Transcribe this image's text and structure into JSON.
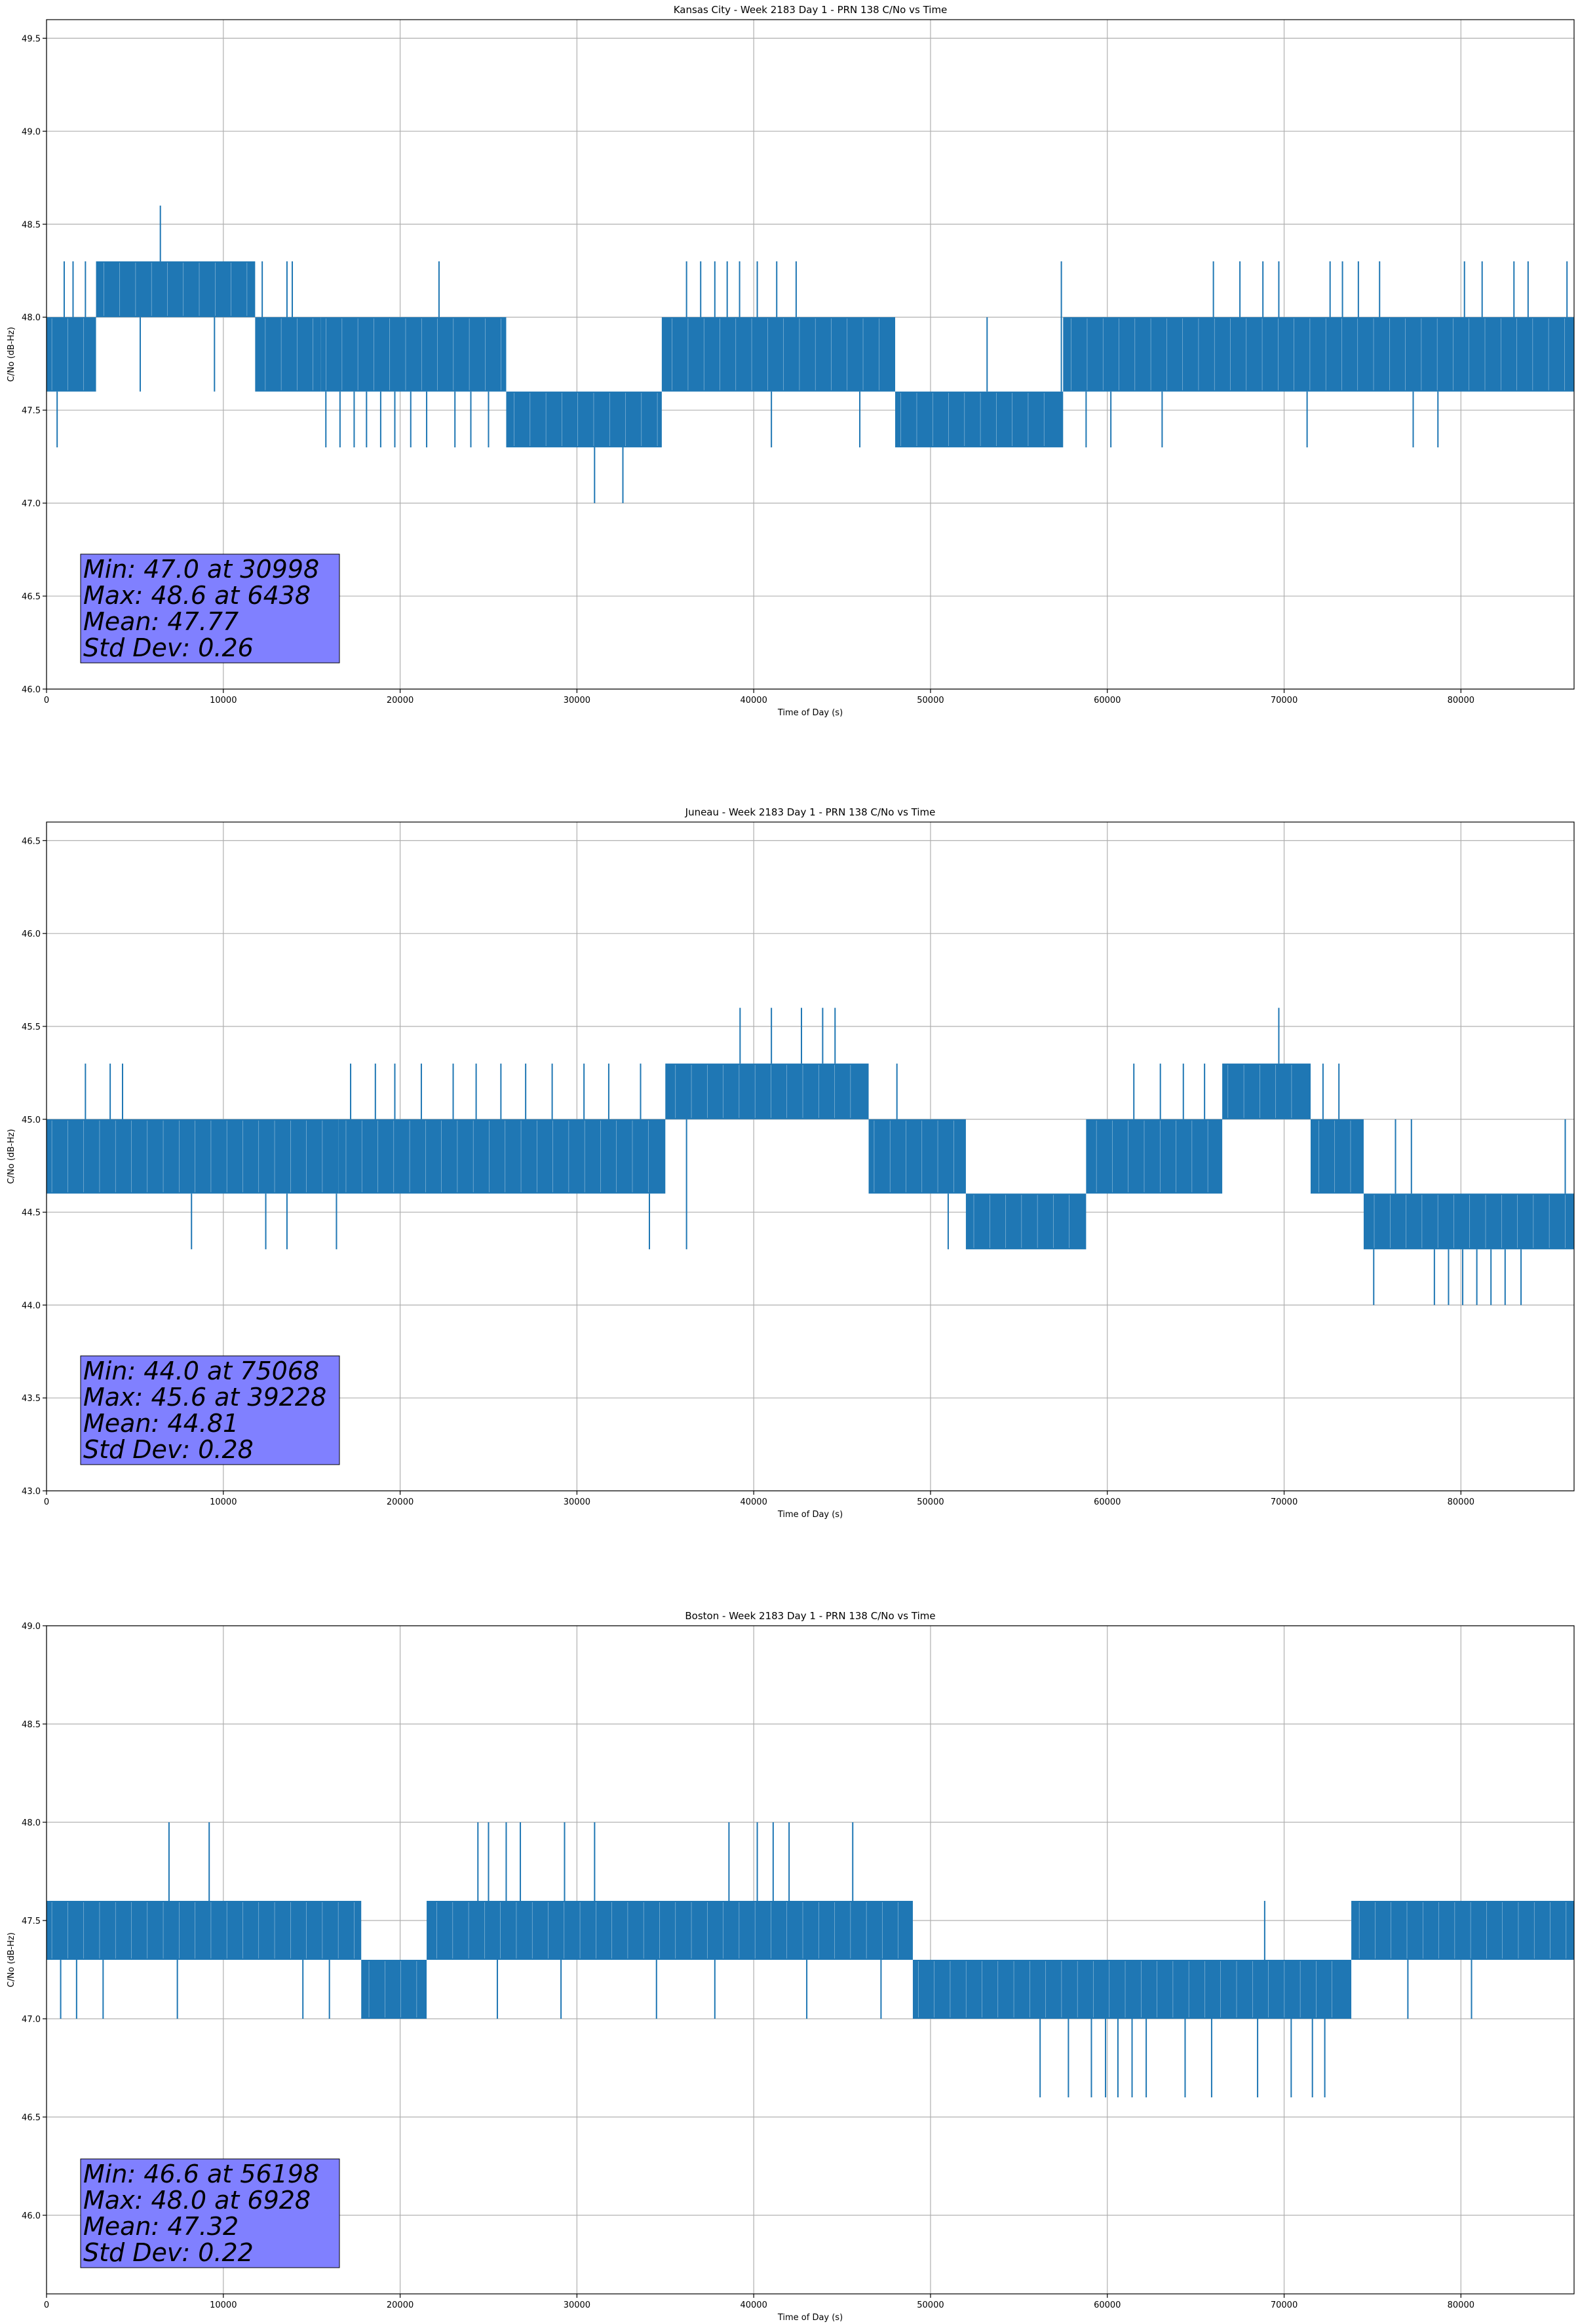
{
  "chart_data": [
    {
      "type": "line",
      "title": "Kansas City - Week 2183 Day 1 - PRN 138 C/No vs Time",
      "xlabel": "Time of Day (s)",
      "ylabel": "C/No (dB-Hz)",
      "xlim": [
        0,
        86400
      ],
      "ylim": [
        46.0,
        49.6
      ],
      "xticks": [
        0,
        10000,
        20000,
        30000,
        40000,
        50000,
        60000,
        70000,
        80000
      ],
      "xtick_labels": [
        "0",
        "10000",
        "20000",
        "30000",
        "40000",
        "50000",
        "60000",
        "70000",
        "80000"
      ],
      "yticks": [
        46.0,
        46.5,
        47.0,
        47.5,
        48.0,
        48.5,
        49.0,
        49.5
      ],
      "ytick_labels": [
        "46.0",
        "46.5",
        "47.0",
        "47.5",
        "48.0",
        "48.5",
        "49.0",
        "49.5"
      ],
      "grid": true,
      "series_color": "#1f77b4",
      "band_segments": [
        {
          "x0": 0,
          "x1": 2800,
          "lo": 47.6,
          "hi": 48.0
        },
        {
          "x0": 2800,
          "x1": 11800,
          "lo": 48.0,
          "hi": 48.3
        },
        {
          "x0": 11800,
          "x1": 15500,
          "lo": 47.6,
          "hi": 48.0
        },
        {
          "x0": 15500,
          "x1": 26000,
          "lo": 47.6,
          "hi": 48.0
        },
        {
          "x0": 26000,
          "x1": 34800,
          "lo": 47.3,
          "hi": 47.6
        },
        {
          "x0": 34800,
          "x1": 48000,
          "lo": 47.6,
          "hi": 48.0
        },
        {
          "x0": 48000,
          "x1": 57500,
          "lo": 47.3,
          "hi": 47.6
        },
        {
          "x0": 57500,
          "x1": 86400,
          "lo": 47.6,
          "hi": 48.0
        }
      ],
      "spikes": [
        {
          "x": 600,
          "lo": 47.3
        },
        {
          "x": 1000,
          "hi": 48.3
        },
        {
          "x": 1500,
          "hi": 48.3
        },
        {
          "x": 2200,
          "hi": 48.3
        },
        {
          "x": 5300,
          "lo": 47.6
        },
        {
          "x": 6438,
          "hi": 48.6
        },
        {
          "x": 9500,
          "lo": 47.6
        },
        {
          "x": 12200,
          "hi": 48.3
        },
        {
          "x": 13600,
          "hi": 48.3
        },
        {
          "x": 13900,
          "hi": 48.3
        },
        {
          "x": 15800,
          "lo": 47.3
        },
        {
          "x": 16600,
          "lo": 47.3
        },
        {
          "x": 17400,
          "lo": 47.3
        },
        {
          "x": 18100,
          "lo": 47.3
        },
        {
          "x": 18900,
          "lo": 47.3
        },
        {
          "x": 19700,
          "lo": 47.3
        },
        {
          "x": 20600,
          "lo": 47.3
        },
        {
          "x": 21500,
          "lo": 47.3
        },
        {
          "x": 22200,
          "hi": 48.3
        },
        {
          "x": 23100,
          "lo": 47.3
        },
        {
          "x": 24000,
          "lo": 47.3
        },
        {
          "x": 25000,
          "lo": 47.3
        },
        {
          "x": 29400,
          "lo": 47.3
        },
        {
          "x": 30998,
          "lo": 47.0
        },
        {
          "x": 32600,
          "lo": 47.0
        },
        {
          "x": 33300,
          "lo": 47.3
        },
        {
          "x": 36200,
          "hi": 48.3
        },
        {
          "x": 37000,
          "hi": 48.3
        },
        {
          "x": 37800,
          "hi": 48.3
        },
        {
          "x": 38500,
          "hi": 48.3
        },
        {
          "x": 39200,
          "hi": 48.3
        },
        {
          "x": 40200,
          "hi": 48.3
        },
        {
          "x": 41300,
          "hi": 48.3
        },
        {
          "x": 42400,
          "hi": 48.3
        },
        {
          "x": 41000,
          "lo": 47.3
        },
        {
          "x": 46000,
          "lo": 47.3
        },
        {
          "x": 53200,
          "hi": 48.0
        },
        {
          "x": 57400,
          "hi": 48.3
        },
        {
          "x": 58800,
          "lo": 47.3
        },
        {
          "x": 60200,
          "lo": 47.3
        },
        {
          "x": 63100,
          "lo": 47.3
        },
        {
          "x": 66000,
          "hi": 48.3
        },
        {
          "x": 67500,
          "hi": 48.3
        },
        {
          "x": 68800,
          "hi": 48.3
        },
        {
          "x": 69700,
          "hi": 48.3
        },
        {
          "x": 71300,
          "lo": 47.3
        },
        {
          "x": 72600,
          "hi": 48.3
        },
        {
          "x": 73300,
          "hi": 48.3
        },
        {
          "x": 74200,
          "hi": 48.3
        },
        {
          "x": 75400,
          "hi": 48.3
        },
        {
          "x": 77300,
          "lo": 47.3
        },
        {
          "x": 78700,
          "lo": 47.3
        },
        {
          "x": 80200,
          "hi": 48.3
        },
        {
          "x": 81200,
          "hi": 48.3
        },
        {
          "x": 83000,
          "hi": 48.3
        },
        {
          "x": 83800,
          "hi": 48.3
        },
        {
          "x": 86000,
          "hi": 48.3
        }
      ],
      "stats": {
        "min": "Min: 47.0 at 30998",
        "max": "Max: 48.6 at 6438",
        "mean": "Mean: 47.77",
        "std": "Std Dev: 0.26"
      }
    },
    {
      "type": "line",
      "title": "Juneau - Week 2183 Day 1 - PRN 138 C/No vs Time",
      "xlabel": "Time of Day (s)",
      "ylabel": "C/No (dB-Hz)",
      "xlim": [
        0,
        86400
      ],
      "ylim": [
        43.0,
        46.6
      ],
      "xticks": [
        0,
        10000,
        20000,
        30000,
        40000,
        50000,
        60000,
        70000,
        80000
      ],
      "xtick_labels": [
        "0",
        "10000",
        "20000",
        "30000",
        "40000",
        "50000",
        "60000",
        "70000",
        "80000"
      ],
      "yticks": [
        43.0,
        43.5,
        44.0,
        44.5,
        45.0,
        45.5,
        46.0,
        46.5
      ],
      "ytick_labels": [
        "43.0",
        "43.5",
        "44.0",
        "44.5",
        "45.0",
        "45.5",
        "46.0",
        "46.5"
      ],
      "grid": true,
      "series_color": "#1f77b4",
      "band_segments": [
        {
          "x0": 0,
          "x1": 16500,
          "lo": 44.6,
          "hi": 45.0
        },
        {
          "x0": 16500,
          "x1": 35000,
          "lo": 44.6,
          "hi": 45.0
        },
        {
          "x0": 35000,
          "x1": 46500,
          "lo": 45.0,
          "hi": 45.3
        },
        {
          "x0": 46500,
          "x1": 52000,
          "lo": 44.6,
          "hi": 45.0
        },
        {
          "x0": 52000,
          "x1": 58800,
          "lo": 44.3,
          "hi": 44.6
        },
        {
          "x0": 58800,
          "x1": 66500,
          "lo": 44.6,
          "hi": 45.0
        },
        {
          "x0": 66500,
          "x1": 71500,
          "lo": 45.0,
          "hi": 45.3
        },
        {
          "x0": 71500,
          "x1": 74500,
          "lo": 44.6,
          "hi": 45.0
        },
        {
          "x0": 74500,
          "x1": 86400,
          "lo": 44.3,
          "hi": 44.6
        }
      ],
      "spikes": [
        {
          "x": 2200,
          "hi": 45.3
        },
        {
          "x": 3600,
          "hi": 45.3
        },
        {
          "x": 4300,
          "hi": 45.3
        },
        {
          "x": 8200,
          "lo": 44.3
        },
        {
          "x": 12400,
          "lo": 44.3
        },
        {
          "x": 13600,
          "lo": 44.3
        },
        {
          "x": 16400,
          "lo": 44.3
        },
        {
          "x": 17200,
          "hi": 45.3
        },
        {
          "x": 18600,
          "hi": 45.3
        },
        {
          "x": 19700,
          "hi": 45.3
        },
        {
          "x": 21200,
          "hi": 45.3
        },
        {
          "x": 23000,
          "hi": 45.3
        },
        {
          "x": 24300,
          "hi": 45.3
        },
        {
          "x": 25700,
          "hi": 45.3
        },
        {
          "x": 27100,
          "hi": 45.3
        },
        {
          "x": 28600,
          "hi": 45.3
        },
        {
          "x": 30400,
          "hi": 45.3
        },
        {
          "x": 31800,
          "hi": 45.3
        },
        {
          "x": 33600,
          "hi": 45.3
        },
        {
          "x": 34100,
          "lo": 44.3
        },
        {
          "x": 36200,
          "lo": 44.3
        },
        {
          "x": 39228,
          "hi": 45.6
        },
        {
          "x": 41000,
          "hi": 45.6
        },
        {
          "x": 42700,
          "hi": 45.6
        },
        {
          "x": 43900,
          "hi": 45.6
        },
        {
          "x": 44600,
          "hi": 45.6
        },
        {
          "x": 48100,
          "hi": 45.3
        },
        {
          "x": 51000,
          "lo": 44.3
        },
        {
          "x": 55600,
          "lo": 44.3
        },
        {
          "x": 57500,
          "lo": 44.3
        },
        {
          "x": 61500,
          "hi": 45.3
        },
        {
          "x": 63000,
          "hi": 45.3
        },
        {
          "x": 64300,
          "hi": 45.3
        },
        {
          "x": 65500,
          "hi": 45.3
        },
        {
          "x": 69700,
          "hi": 45.6
        },
        {
          "x": 72200,
          "hi": 45.3
        },
        {
          "x": 73100,
          "hi": 45.3
        },
        {
          "x": 75068,
          "lo": 44.0
        },
        {
          "x": 76300,
          "hi": 45.0
        },
        {
          "x": 77200,
          "hi": 45.0
        },
        {
          "x": 78500,
          "lo": 44.0
        },
        {
          "x": 79300,
          "lo": 44.0
        },
        {
          "x": 80100,
          "lo": 44.0
        },
        {
          "x": 80900,
          "lo": 44.0
        },
        {
          "x": 81700,
          "lo": 44.0
        },
        {
          "x": 82500,
          "lo": 44.0
        },
        {
          "x": 83400,
          "lo": 44.0
        },
        {
          "x": 85900,
          "hi": 45.0
        }
      ],
      "stats": {
        "min": "Min: 44.0 at 75068",
        "max": "Max: 45.6 at 39228",
        "mean": "Mean: 44.81",
        "std": "Std Dev: 0.28"
      }
    },
    {
      "type": "line",
      "title": "Boston - Week 2183 Day 1 - PRN 138 C/No vs Time",
      "xlabel": "Time of Day (s)",
      "ylabel": "C/No (dB-Hz)",
      "xlim": [
        0,
        86400
      ],
      "ylim": [
        45.6,
        49.0
      ],
      "xticks": [
        0,
        10000,
        20000,
        30000,
        40000,
        50000,
        60000,
        70000,
        80000
      ],
      "xtick_labels": [
        "0",
        "10000",
        "20000",
        "30000",
        "40000",
        "50000",
        "60000",
        "70000",
        "80000"
      ],
      "yticks": [
        46.0,
        46.5,
        47.0,
        47.5,
        48.0,
        48.5,
        49.0
      ],
      "ytick_labels": [
        "46.0",
        "46.5",
        "47.0",
        "47.5",
        "48.0",
        "48.5",
        "49.0"
      ],
      "grid": true,
      "series_color": "#1f77b4",
      "band_segments": [
        {
          "x0": 0,
          "x1": 17800,
          "lo": 47.3,
          "hi": 47.6
        },
        {
          "x0": 17800,
          "x1": 21500,
          "lo": 47.0,
          "hi": 47.3
        },
        {
          "x0": 21500,
          "x1": 49000,
          "lo": 47.3,
          "hi": 47.6
        },
        {
          "x0": 49000,
          "x1": 73800,
          "lo": 47.0,
          "hi": 47.3
        },
        {
          "x0": 73800,
          "x1": 86400,
          "lo": 47.3,
          "hi": 47.6
        }
      ],
      "spikes": [
        {
          "x": 800,
          "lo": 47.0
        },
        {
          "x": 1700,
          "lo": 47.0
        },
        {
          "x": 3200,
          "lo": 47.0
        },
        {
          "x": 6928,
          "hi": 48.0
        },
        {
          "x": 9200,
          "hi": 48.0
        },
        {
          "x": 7400,
          "lo": 47.0
        },
        {
          "x": 14500,
          "lo": 47.0
        },
        {
          "x": 16000,
          "lo": 47.0
        },
        {
          "x": 19500,
          "lo": 47.0
        },
        {
          "x": 21200,
          "lo": 47.0
        },
        {
          "x": 24400,
          "hi": 48.0
        },
        {
          "x": 25000,
          "hi": 48.0
        },
        {
          "x": 26000,
          "hi": 48.0
        },
        {
          "x": 26800,
          "hi": 48.0
        },
        {
          "x": 29300,
          "hi": 48.0
        },
        {
          "x": 31000,
          "hi": 48.0
        },
        {
          "x": 25500,
          "lo": 47.0
        },
        {
          "x": 29100,
          "lo": 47.0
        },
        {
          "x": 34500,
          "lo": 47.0
        },
        {
          "x": 37800,
          "lo": 47.0
        },
        {
          "x": 38600,
          "hi": 48.0
        },
        {
          "x": 40200,
          "hi": 48.0
        },
        {
          "x": 41100,
          "hi": 48.0
        },
        {
          "x": 42000,
          "hi": 48.0
        },
        {
          "x": 45600,
          "hi": 48.0
        },
        {
          "x": 43000,
          "lo": 47.0
        },
        {
          "x": 47200,
          "lo": 47.0
        },
        {
          "x": 56198,
          "lo": 46.6
        },
        {
          "x": 57800,
          "lo": 46.6
        },
        {
          "x": 59100,
          "lo": 46.6
        },
        {
          "x": 59900,
          "lo": 46.6
        },
        {
          "x": 60600,
          "lo": 46.6
        },
        {
          "x": 61400,
          "lo": 46.6
        },
        {
          "x": 62200,
          "lo": 46.6
        },
        {
          "x": 64400,
          "lo": 46.6
        },
        {
          "x": 65900,
          "lo": 46.6
        },
        {
          "x": 68500,
          "lo": 46.6
        },
        {
          "x": 68900,
          "hi": 47.6
        },
        {
          "x": 70400,
          "lo": 46.6
        },
        {
          "x": 71600,
          "lo": 46.6
        },
        {
          "x": 72300,
          "lo": 46.6
        },
        {
          "x": 77000,
          "lo": 47.0
        },
        {
          "x": 80600,
          "lo": 47.0
        }
      ],
      "stats": {
        "min": "Min: 46.6 at 56198",
        "max": "Max: 48.0 at 6928",
        "mean": "Mean: 47.32",
        "std": "Std Dev: 0.22"
      }
    }
  ]
}
